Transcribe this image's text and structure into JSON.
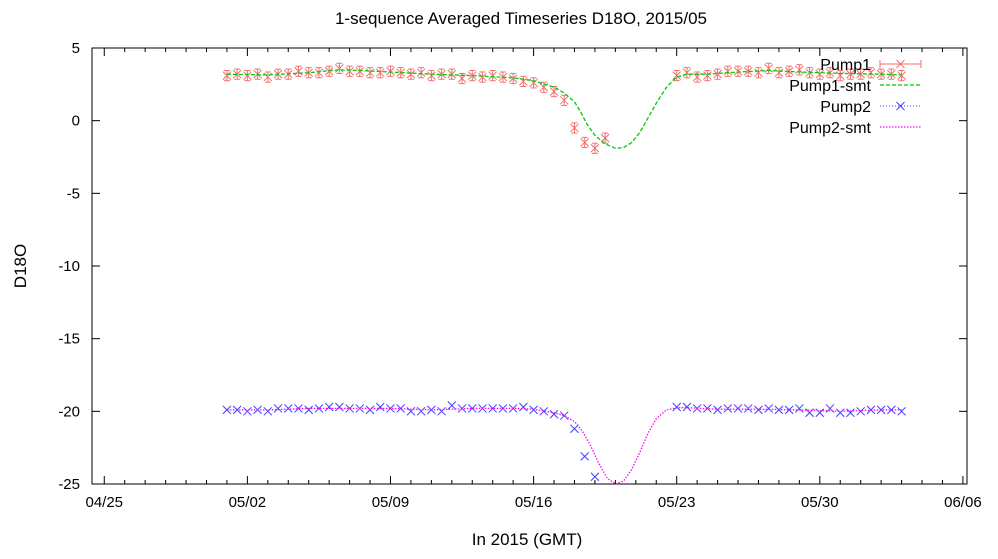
{
  "chart_data": {
    "type": "line",
    "title": "1-sequence Averaged Timeseries D18O, 2015/05",
    "xlabel": "In 2015 (GMT)",
    "ylabel": "D18O",
    "x_units": "day of May 2015 (fractional)",
    "xlim": [
      -5.6,
      37.2
    ],
    "ylim": [
      -25,
      5
    ],
    "xticks": [
      {
        "value": -5,
        "label": "04/25"
      },
      {
        "value": 2,
        "label": "05/02"
      },
      {
        "value": 9,
        "label": "05/09"
      },
      {
        "value": 16,
        "label": "05/16"
      },
      {
        "value": 23,
        "label": "05/23"
      },
      {
        "value": 30,
        "label": "05/30"
      },
      {
        "value": 37,
        "label": "06/06"
      }
    ],
    "yticks": [
      {
        "value": 5,
        "label": "5"
      },
      {
        "value": 0,
        "label": "0"
      },
      {
        "value": -5,
        "label": "-5"
      },
      {
        "value": -10,
        "label": "-10"
      },
      {
        "value": -15,
        "label": "-15"
      },
      {
        "value": -20,
        "label": "-20"
      },
      {
        "value": -25,
        "label": "-25"
      }
    ],
    "grid": false,
    "legend_position": "top-right",
    "series": [
      {
        "name": "Pump1",
        "style": "points-errorbars",
        "color": "#f07070",
        "error": 0.35,
        "x": [
          1.0,
          1.5,
          2.0,
          2.5,
          3.0,
          3.5,
          4.0,
          4.5,
          5.0,
          5.5,
          6.0,
          6.5,
          7.0,
          7.5,
          8.0,
          8.5,
          9.0,
          9.5,
          10.0,
          10.5,
          11.0,
          11.5,
          12.0,
          12.5,
          13.0,
          13.5,
          14.0,
          14.5,
          15.0,
          15.5,
          16.0,
          16.5,
          17.0,
          17.5,
          18.0,
          18.5,
          19.0,
          19.5,
          23.0,
          23.5,
          24.0,
          24.5,
          25.0,
          25.5,
          26.0,
          26.5,
          27.0,
          27.5,
          28.0,
          28.5,
          29.0,
          29.5,
          30.0,
          30.5,
          31.0,
          31.5,
          32.0,
          32.5,
          33.0,
          33.5,
          34.0
        ],
        "y": [
          3.1,
          3.2,
          3.1,
          3.2,
          3.0,
          3.2,
          3.2,
          3.4,
          3.3,
          3.3,
          3.4,
          3.6,
          3.4,
          3.4,
          3.3,
          3.3,
          3.4,
          3.3,
          3.2,
          3.3,
          3.1,
          3.2,
          3.2,
          2.9,
          3.1,
          3.0,
          3.1,
          3.0,
          2.9,
          2.7,
          2.6,
          2.3,
          2.0,
          1.4,
          -0.5,
          -1.5,
          -1.9,
          -1.2,
          3.1,
          3.3,
          3.0,
          3.1,
          3.2,
          3.4,
          3.4,
          3.4,
          3.3,
          3.6,
          3.3,
          3.4,
          3.5,
          3.3,
          3.2,
          3.3,
          3.1,
          3.2,
          3.2,
          3.3,
          3.2,
          3.2,
          3.1
        ]
      },
      {
        "name": "Pump1-smt",
        "style": "dashed-line",
        "color": "#00cc00",
        "x": [
          1.0,
          3.0,
          5.0,
          6.5,
          7.5,
          9.0,
          11.0,
          13.0,
          15.0,
          16.0,
          17.0,
          17.5,
          18.0,
          18.3,
          18.6,
          19.0,
          19.5,
          20.0,
          20.4,
          20.8,
          21.2,
          21.6,
          22.0,
          22.5,
          23.0,
          23.5,
          24.5,
          26.0,
          27.5,
          29.0,
          31.0,
          33.0,
          34.0
        ],
        "y": [
          3.2,
          3.15,
          3.3,
          3.5,
          3.45,
          3.35,
          3.2,
          3.1,
          2.95,
          2.75,
          2.3,
          1.9,
          1.3,
          0.6,
          -0.2,
          -1.0,
          -1.6,
          -1.9,
          -1.85,
          -1.5,
          -0.8,
          0.2,
          1.2,
          2.3,
          3.0,
          3.2,
          3.2,
          3.35,
          3.45,
          3.35,
          3.25,
          3.2,
          3.15
        ]
      },
      {
        "name": "Pump2",
        "style": "points",
        "color": "#4040ff",
        "x": [
          1.0,
          1.5,
          2.0,
          2.5,
          3.0,
          3.5,
          4.0,
          4.5,
          5.0,
          5.5,
          6.0,
          6.5,
          7.0,
          7.5,
          8.0,
          8.5,
          9.0,
          9.5,
          10.0,
          10.5,
          11.0,
          11.5,
          12.0,
          12.5,
          13.0,
          13.5,
          14.0,
          14.5,
          15.0,
          15.5,
          16.0,
          16.5,
          17.0,
          17.5,
          18.0,
          18.5,
          19.0,
          23.0,
          23.5,
          24.0,
          24.5,
          25.0,
          25.5,
          26.0,
          26.5,
          27.0,
          27.5,
          28.0,
          28.5,
          29.0,
          29.5,
          30.0,
          30.5,
          31.0,
          31.5,
          32.0,
          32.5,
          33.0,
          33.5,
          34.0
        ],
        "y": [
          -19.9,
          -19.9,
          -20.0,
          -19.9,
          -20.0,
          -19.8,
          -19.8,
          -19.8,
          -19.9,
          -19.8,
          -19.7,
          -19.7,
          -19.8,
          -19.8,
          -19.9,
          -19.7,
          -19.8,
          -19.8,
          -20.0,
          -20.0,
          -19.9,
          -20.0,
          -19.6,
          -19.8,
          -19.8,
          -19.8,
          -19.8,
          -19.8,
          -19.8,
          -19.7,
          -19.9,
          -20.0,
          -20.2,
          -20.3,
          -21.2,
          -23.1,
          -24.5,
          -19.7,
          -19.7,
          -19.8,
          -19.8,
          -19.9,
          -19.8,
          -19.8,
          -19.8,
          -19.9,
          -19.8,
          -19.9,
          -19.9,
          -19.8,
          -20.1,
          -20.1,
          -19.8,
          -20.1,
          -20.1,
          -20.0,
          -19.9,
          -19.9,
          -19.9,
          -20.0
        ]
      },
      {
        "name": "Pump2-smt",
        "style": "dotted-line",
        "color": "#ff00ff",
        "x": [
          1.0,
          3.0,
          5.0,
          7.0,
          9.0,
          11.0,
          13.0,
          15.0,
          16.0,
          17.0,
          17.5,
          18.0,
          18.4,
          18.8,
          19.2,
          19.6,
          20.0,
          20.4,
          20.8,
          21.2,
          21.6,
          22.0,
          22.5,
          23.0,
          23.5,
          25.0,
          27.0,
          29.0,
          31.0,
          33.0,
          34.0
        ],
        "y": [
          -19.9,
          -19.9,
          -19.8,
          -19.8,
          -19.8,
          -19.9,
          -19.8,
          -19.8,
          -19.85,
          -20.1,
          -20.3,
          -20.7,
          -21.4,
          -22.4,
          -23.6,
          -24.6,
          -25.0,
          -24.8,
          -24.0,
          -22.8,
          -21.5,
          -20.5,
          -19.9,
          -19.75,
          -19.75,
          -19.85,
          -19.85,
          -19.9,
          -20.0,
          -19.9,
          -19.9
        ]
      }
    ]
  }
}
